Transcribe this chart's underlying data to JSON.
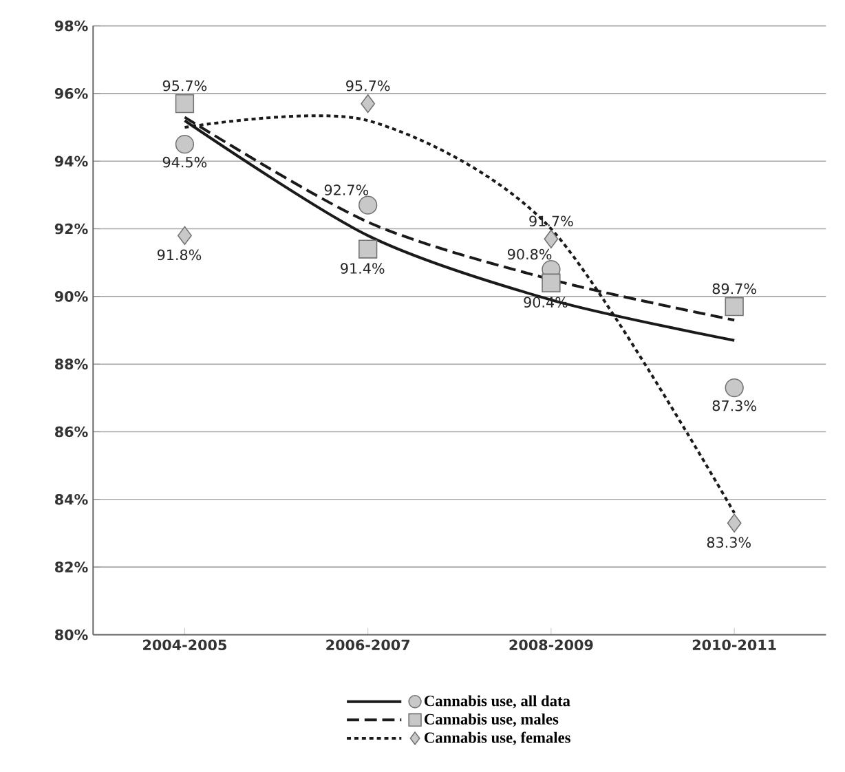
{
  "chart_data": {
    "type": "scatter",
    "categories": [
      "2004-2005",
      "2006-2007",
      "2008-2009",
      "2010-2011"
    ],
    "ylim": [
      80,
      98
    ],
    "yticks": [
      {
        "value": 80,
        "label": "80%"
      },
      {
        "value": 82,
        "label": "82%"
      },
      {
        "value": 84,
        "label": "84%"
      },
      {
        "value": 86,
        "label": "86%"
      },
      {
        "value": 88,
        "label": "88%"
      },
      {
        "value": 90,
        "label": "90%"
      },
      {
        "value": 92,
        "label": "92%"
      },
      {
        "value": 94,
        "label": "94%"
      },
      {
        "value": 96,
        "label": "96%"
      },
      {
        "value": 98,
        "label": "98%"
      }
    ],
    "grid": "y",
    "legend": "bottom",
    "series": [
      {
        "name": "Cannabis use, all data",
        "color": "#c8c8c8",
        "marker": "circle",
        "values": [
          94.5,
          92.7,
          90.8,
          87.3
        ],
        "value_labels": [
          "94.5%",
          "92.7%",
          "90.8%",
          "87.3%"
        ]
      },
      {
        "name": "Cannabis use, males",
        "color": "#c8c8c8",
        "marker": "square",
        "values": [
          95.7,
          91.4,
          90.4,
          89.7
        ],
        "value_labels": [
          "95.7%",
          "91.4%",
          "90.4%",
          "89.7%"
        ]
      },
      {
        "name": "Cannabis use, females",
        "color": "#c8c8c8",
        "marker": "diamond",
        "values": [
          91.8,
          95.7,
          91.7,
          83.3
        ],
        "value_labels": [
          "91.8%",
          "95.7%",
          "91.7%",
          "83.3%"
        ]
      },
      {
        "type": "line",
        "color": "#1a1a1a",
        "line_style": "solid",
        "values": [
          95.2,
          91.8,
          89.9,
          88.7
        ]
      },
      {
        "type": "line",
        "color": "#1a1a1a",
        "line_style": "dashed",
        "values": [
          95.3,
          92.2,
          90.5,
          89.3
        ]
      },
      {
        "type": "line",
        "color": "#1a1a1a",
        "line_style": "dotted",
        "values": [
          95.0,
          95.2,
          92.0,
          83.6
        ]
      }
    ]
  }
}
